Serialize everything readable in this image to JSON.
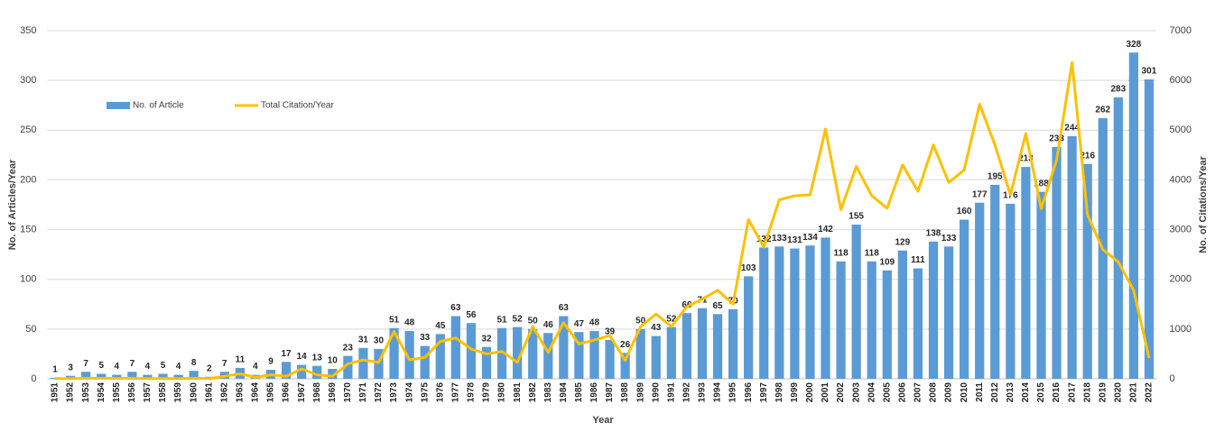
{
  "chart_data": {
    "type": "bar-line",
    "x_label": "Year",
    "y_label": "No. of Articles/Year",
    "y2_label": "No. of Citations/Year",
    "categories": [
      "1951",
      "1952",
      "1953",
      "1954",
      "1955",
      "1956",
      "1957",
      "1958",
      "1959",
      "1960",
      "1961",
      "1962",
      "1963",
      "1964",
      "1965",
      "1966",
      "1967",
      "1968",
      "1969",
      "1970",
      "1971",
      "1972",
      "1973",
      "1974",
      "1975",
      "1976",
      "1977",
      "1978",
      "1979",
      "1980",
      "1981",
      "1982",
      "1983",
      "1984",
      "1985",
      "1986",
      "1987",
      "1988",
      "1989",
      "1990",
      "1991",
      "1992",
      "1993",
      "1994",
      "1995",
      "1996",
      "1997",
      "1998",
      "1999",
      "2000",
      "2001",
      "2002",
      "2003",
      "2004",
      "2005",
      "2006",
      "2007",
      "2008",
      "2009",
      "2010",
      "2011",
      "2012",
      "2013",
      "2014",
      "2015",
      "2016",
      "2017",
      "2018",
      "2019",
      "2020",
      "2021",
      "2022"
    ],
    "series": [
      {
        "name": "No. of Article",
        "type": "bar",
        "color": "#5b9bd5",
        "axis": "y",
        "values": [
          1,
          3,
          7,
          5,
          4,
          7,
          4,
          5,
          4,
          8,
          2,
          7,
          11,
          4,
          9,
          17,
          14,
          13,
          10,
          23,
          31,
          30,
          51,
          48,
          33,
          45,
          63,
          56,
          32,
          51,
          52,
          50,
          46,
          63,
          47,
          48,
          39,
          26,
          50,
          43,
          52,
          66,
          71,
          65,
          70,
          103,
          132,
          133,
          131,
          134,
          142,
          118,
          155,
          118,
          109,
          129,
          111,
          138,
          133,
          160,
          177,
          195,
          176,
          213,
          188,
          233,
          244,
          216,
          262,
          283,
          328,
          301
        ]
      },
      {
        "name": "Total Citation/Year",
        "type": "line",
        "color": "#ffc000",
        "axis": "y2",
        "values": [
          5,
          5,
          10,
          10,
          10,
          10,
          5,
          5,
          5,
          10,
          5,
          50,
          100,
          30,
          80,
          50,
          200,
          80,
          50,
          300,
          380,
          330,
          950,
          380,
          430,
          750,
          820,
          600,
          500,
          550,
          330,
          1050,
          530,
          1130,
          700,
          780,
          870,
          370,
          1050,
          1300,
          1050,
          1450,
          1600,
          1780,
          1500,
          3200,
          2650,
          3600,
          3680,
          3700,
          5020,
          3400,
          4270,
          3680,
          3430,
          4300,
          3770,
          4700,
          3950,
          4200,
          5520,
          4700,
          3700,
          4930,
          3420,
          4400,
          6360,
          3300,
          2600,
          2350,
          1780,
          420
        ]
      }
    ],
    "ylim": [
      0,
      350
    ],
    "yticks": [
      0,
      50,
      100,
      150,
      200,
      250,
      300,
      350
    ],
    "y2lim": [
      0,
      7000
    ],
    "y2ticks": [
      0,
      1000,
      2000,
      3000,
      4000,
      5000,
      6000,
      7000
    ],
    "grid": true,
    "legend": "upper left"
  }
}
